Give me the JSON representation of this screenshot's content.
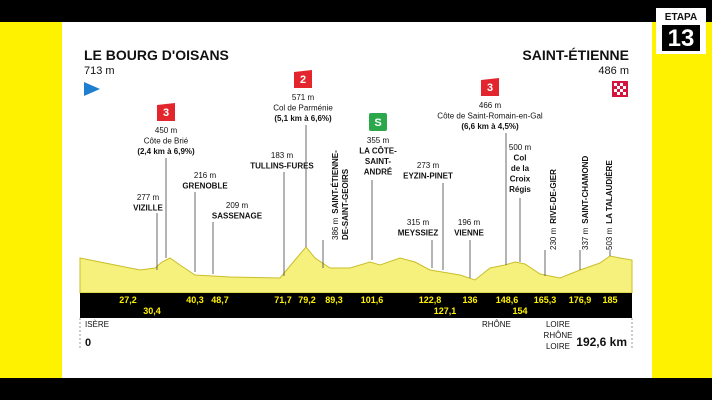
{
  "badge": {
    "label": "ETAPA",
    "number": "13"
  },
  "start": {
    "name": "LE BOURG D'OISANS",
    "elevation": "713 m",
    "km": "0"
  },
  "finish": {
    "name": "SAINT-ÉTIENNE",
    "elevation": "486 m",
    "km": "192,6 km"
  },
  "waypoints": [
    {
      "km": "27,2",
      "elevation": "277 m",
      "name": [
        "VIZILLE"
      ]
    },
    {
      "km": "30,4",
      "elevation": "450 m",
      "name": [
        "Côte de Brié"
      ],
      "detail": "(2,4 km à 6,9%)",
      "category": "3"
    },
    {
      "km": "40,3",
      "elevation": "216 m",
      "name": [
        "GRENOBLE"
      ]
    },
    {
      "km": "48,7",
      "elevation": "209 m",
      "name": [
        "SASSENAGE"
      ]
    },
    {
      "km": "71,7",
      "elevation": "183 m",
      "name": [
        "TULLINS-FURES"
      ]
    },
    {
      "km": "79,2",
      "elevation": "571 m",
      "name": [
        "Col de Parménie"
      ],
      "detail": "(5,1 km à 6,6%)",
      "category": "2"
    },
    {
      "km": "89,3",
      "elevation": "386 m",
      "name": [
        "SAINT-ÉTIENNE-",
        "DE-SAINT-GEOIRS"
      ]
    },
    {
      "km": "101,6",
      "elevation": "355 m",
      "name": [
        "LA CÔTE-",
        "SAINT-",
        "ANDRÉ"
      ],
      "category": "S"
    },
    {
      "km": "122,8",
      "elevation": "315 m",
      "name": [
        "MEYSSIEZ"
      ]
    },
    {
      "km": "127,1",
      "elevation": "273 m",
      "name": [
        "EYZIN-PINET"
      ]
    },
    {
      "km": "136",
      "elevation": "196 m",
      "name": [
        "VIENNE"
      ]
    },
    {
      "km": "148,6",
      "elevation": "466 m",
      "name": [
        "Côte de Saint-Romain-en-Gal"
      ],
      "detail": "(6,6 km à 4,5%)",
      "category": "3"
    },
    {
      "km": "154",
      "elevation": "500 m",
      "name": [
        "Col",
        "de la",
        "Croix",
        "Régis"
      ]
    },
    {
      "km": "165,3",
      "elevation": "230 m",
      "name": [
        "RIVE-DE-GIER"
      ]
    },
    {
      "km": "176,9",
      "elevation": "337 m",
      "name": [
        "SAINT-CHAMOND"
      ]
    },
    {
      "km": "185",
      "elevation": "503 m",
      "name": [
        "LA TALAUDIÈRE"
      ]
    }
  ],
  "regions": [
    "ISÈRE",
    "RHÔNE",
    "LOIRE",
    "RHÔNE",
    "LOIRE"
  ]
}
